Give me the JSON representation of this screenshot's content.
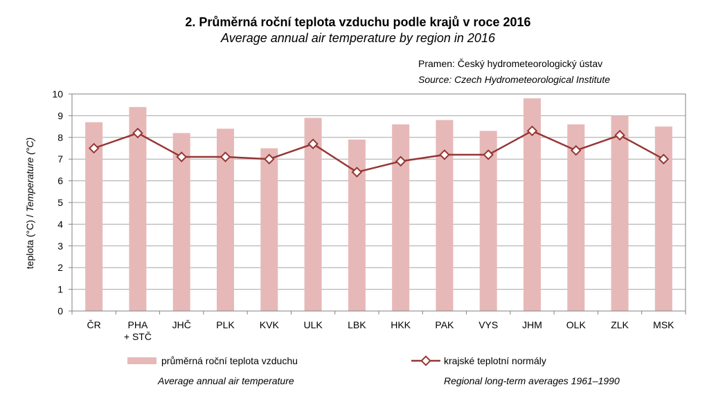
{
  "chart_data": {
    "type": "bar",
    "title": "2. Průměrná roční teplota vzduchu podle krajů v roce 2016",
    "subtitle": "Average annual air temperature by region in 2016",
    "source_cz": "Pramen: Český hydrometeorologický ústav",
    "source_en": "Source: Czech Hydrometeorological Institute",
    "ylabel_cz": "teplota (°C) / ",
    "ylabel_en": "Temperature (°C)",
    "xlabel": "",
    "ylim": [
      0,
      10
    ],
    "yticks": [
      "0",
      "1",
      "2",
      "3",
      "4",
      "5",
      "6",
      "7",
      "8",
      "9",
      "10"
    ],
    "grid": true,
    "categories": [
      [
        "ČR"
      ],
      [
        "PHA",
        "+ STČ"
      ],
      [
        "JHČ"
      ],
      [
        "PLK"
      ],
      [
        "KVK"
      ],
      [
        "ULK"
      ],
      [
        "LBK"
      ],
      [
        "HKK"
      ],
      [
        "PAK"
      ],
      [
        "VYS"
      ],
      [
        "JHM"
      ],
      [
        "OLK"
      ],
      [
        "ZLK"
      ],
      [
        "MSK"
      ]
    ],
    "series": [
      {
        "name": "průměrná roční teplota vzduchu",
        "name_en": "Average annual air temperature",
        "kind": "bar",
        "color": "#e6b9b8",
        "values": [
          8.7,
          9.4,
          8.2,
          8.4,
          7.5,
          8.9,
          7.9,
          8.6,
          8.8,
          8.3,
          9.8,
          8.6,
          9.0,
          8.5
        ]
      },
      {
        "name": "krajské teplotní normály",
        "name_en": "Regional long-term averages 1961–1990",
        "kind": "line",
        "color": "#953735",
        "values": [
          7.5,
          8.2,
          7.1,
          7.1,
          7.0,
          7.7,
          6.4,
          6.9,
          7.2,
          7.2,
          8.3,
          7.4,
          8.1,
          7.0
        ]
      }
    ],
    "legend": "bottom"
  }
}
